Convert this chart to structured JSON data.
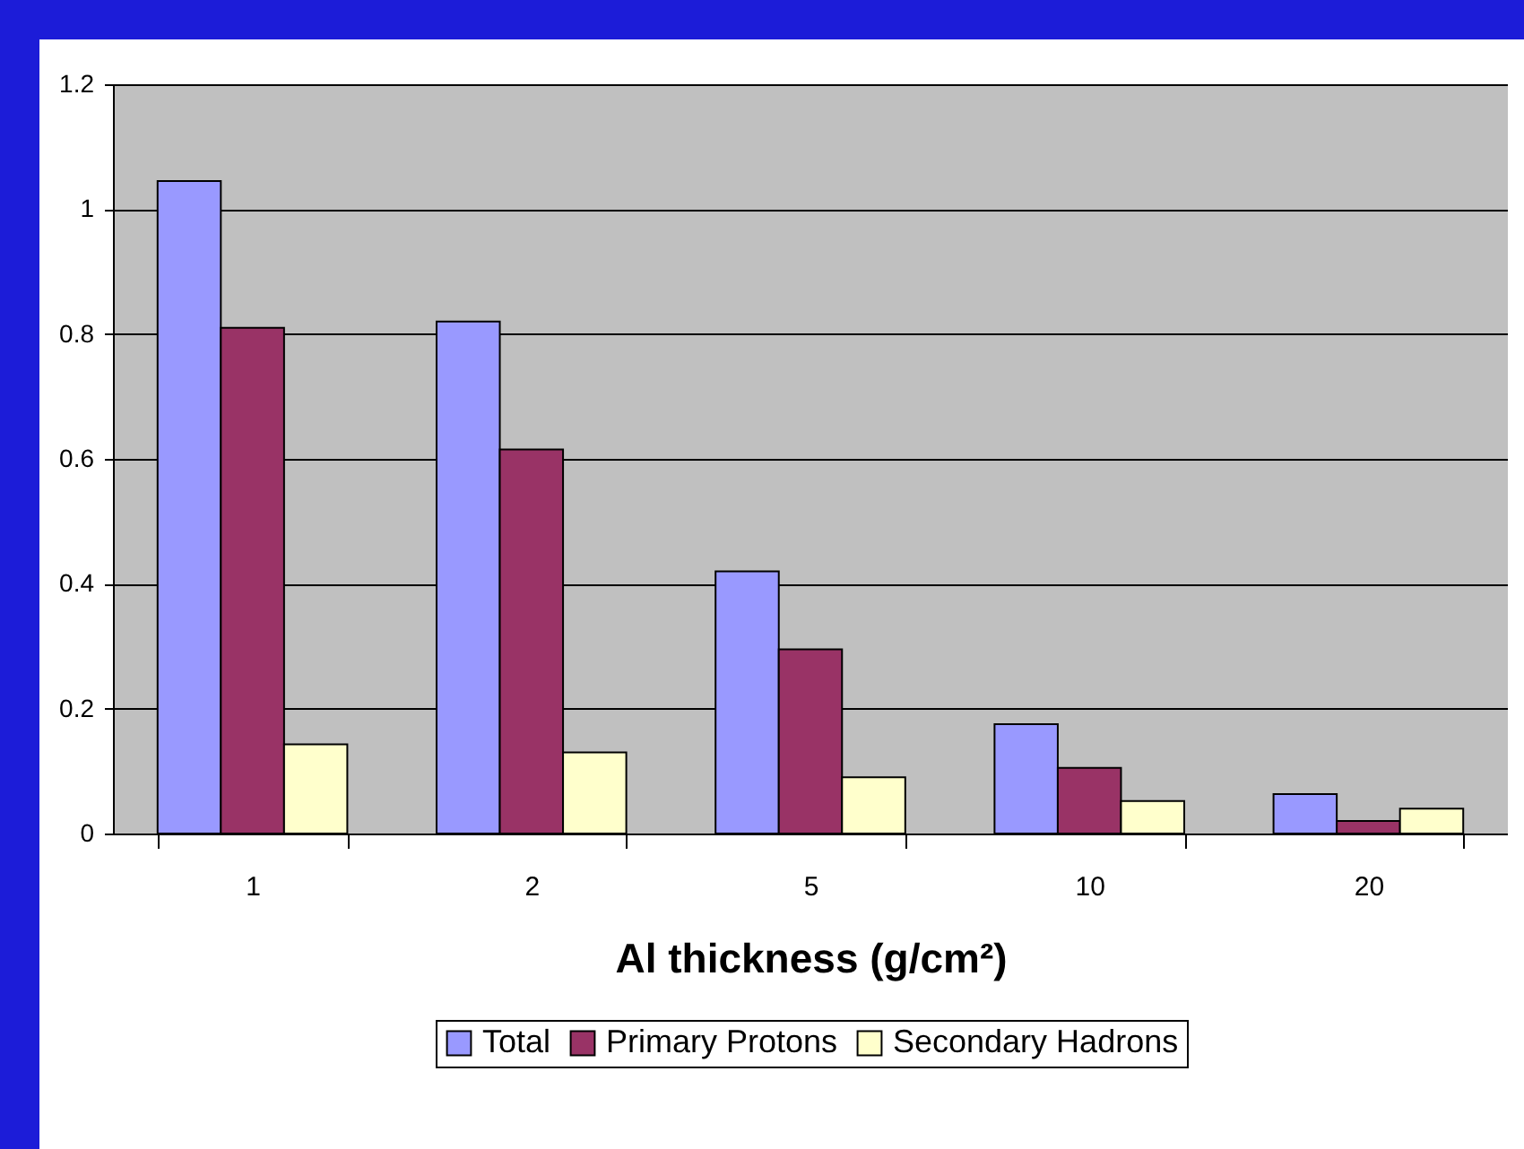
{
  "chart_data": {
    "type": "bar",
    "xlabel": "Al thickness (g/cm²)",
    "categories": [
      "1",
      "2",
      "5",
      "10",
      "20"
    ],
    "series": [
      {
        "name": "Total",
        "color": "#9999ff",
        "values": [
          1.045,
          0.82,
          0.42,
          0.175,
          0.063
        ]
      },
      {
        "name": "Primary Protons",
        "color": "#993366",
        "values": [
          0.81,
          0.615,
          0.295,
          0.105,
          0.02
        ]
      },
      {
        "name": "Secondary Hadrons",
        "color": "#ffffcc",
        "values": [
          0.143,
          0.13,
          0.09,
          0.052,
          0.04
        ]
      }
    ],
    "ylim": [
      0,
      1.2
    ],
    "yticks": [
      0,
      0.2,
      0.4,
      0.6,
      0.8,
      1,
      1.2
    ],
    "grid": "y",
    "legend": "bottom"
  }
}
